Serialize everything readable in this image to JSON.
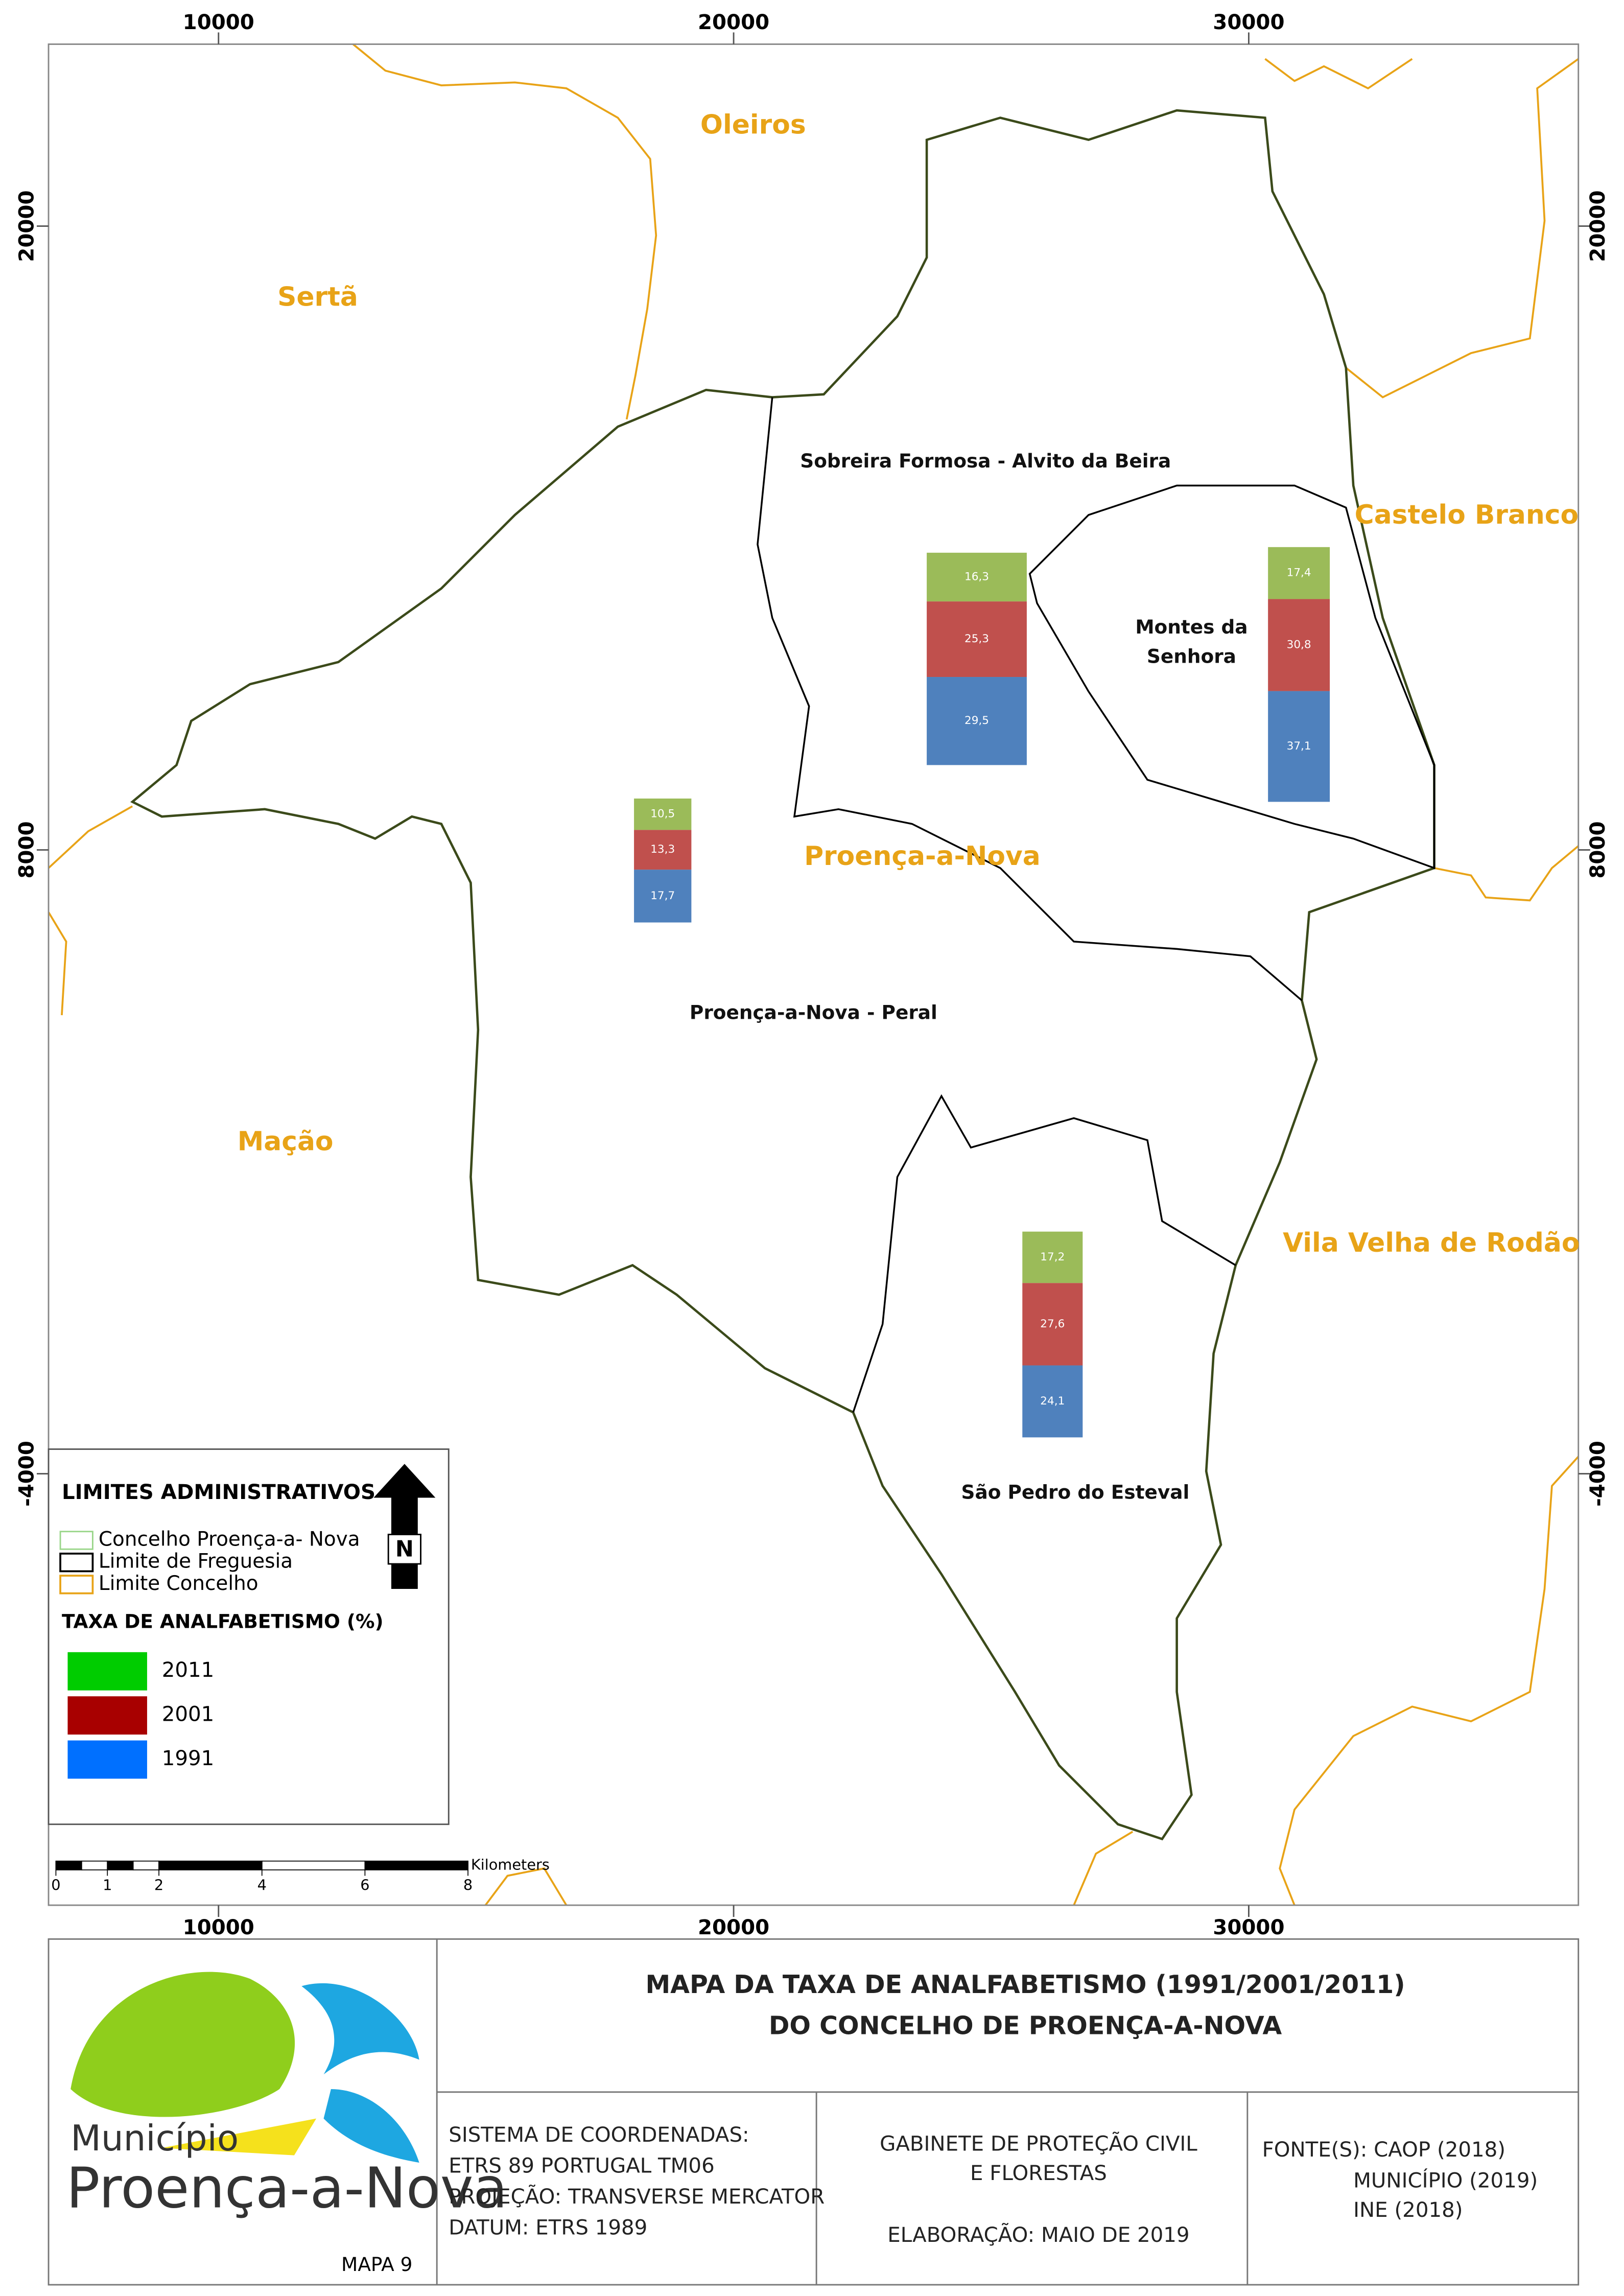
{
  "map": {
    "type": "stacked-bar",
    "xlim": [
      6700,
      36400
    ],
    "ylim": [
      -12300,
      23500
    ],
    "xticks": [
      10000,
      20000,
      30000
    ],
    "yticks": [
      20000,
      8000,
      -4000
    ],
    "concelhos": [
      "Oleiros",
      "Sertã",
      "Castelo Branco",
      "Proença-a-Nova",
      "Mação",
      "Vila Velha de Rodão"
    ],
    "series": [
      {
        "name": "2011",
        "color": "#00cc00",
        "bar_color": "#9bbb59"
      },
      {
        "name": "2001",
        "color": "#a80000",
        "bar_color": "#c0504d"
      },
      {
        "name": "1991",
        "color": "#0070ff",
        "bar_color": "#4f81bd"
      }
    ],
    "freguesias": [
      {
        "name_lines": [
          "Sobreira Formosa - Alvito da Beira"
        ],
        "values": [
          16.3,
          25.3,
          29.5
        ],
        "value_labels": [
          "16,3",
          "25,3",
          "29,5"
        ]
      },
      {
        "name_lines": [
          "Montes da",
          "Senhora"
        ],
        "values": [
          17.4,
          30.8,
          37.1
        ],
        "value_labels": [
          "17,4",
          "30,8",
          "37,1"
        ]
      },
      {
        "name_lines": [
          "Proença-a-Nova - Peral"
        ],
        "values": [
          10.5,
          13.3,
          17.7
        ],
        "value_labels": [
          "10,5",
          "13,3",
          "17,7"
        ]
      },
      {
        "name_lines": [
          "São Pedro do Esteval"
        ],
        "values": [
          17.2,
          27.6,
          24.1
        ],
        "value_labels": [
          "17,2",
          "27,6",
          "24,1"
        ]
      }
    ],
    "legend": {
      "title": "LIMITES ADMINISTRATIVOS",
      "boundaries": [
        "Concelho Proença-a- Nova",
        "Limite de Freguesia",
        "Limite Concelho"
      ],
      "rate_title": "TAXA DE ANALFABETISMO (%)"
    },
    "north": "N",
    "scale": {
      "ticks": [
        0,
        1,
        2,
        4,
        6,
        8
      ],
      "unit": "Kilometers"
    }
  },
  "title_block": {
    "title": [
      "MAPA DA TAXA DE ANALFABETISMO (1991/2001/2011)",
      "DO CONCELHO DE PROENÇA-A-NOVA"
    ],
    "logo": [
      "Município",
      "Proença-a-Nova"
    ],
    "map_number": "MAPA 9",
    "coordinates": [
      "SISTEMA DE COORDENADAS:",
      "ETRS 89 PORTUGAL TM06",
      "PROJEÇÃO: TRANSVERSE MERCATOR",
      "DATUM: ETRS 1989"
    ],
    "office": [
      "GABINETE DE PROTEÇÃO CIVIL",
      "E FLORESTAS",
      "ELABORAÇÃO: MAIO DE 2019"
    ],
    "sources": [
      "FONTE(S): CAOP (2018)",
      "MUNICÍPIO (2019)",
      "INE (2018)"
    ]
  }
}
